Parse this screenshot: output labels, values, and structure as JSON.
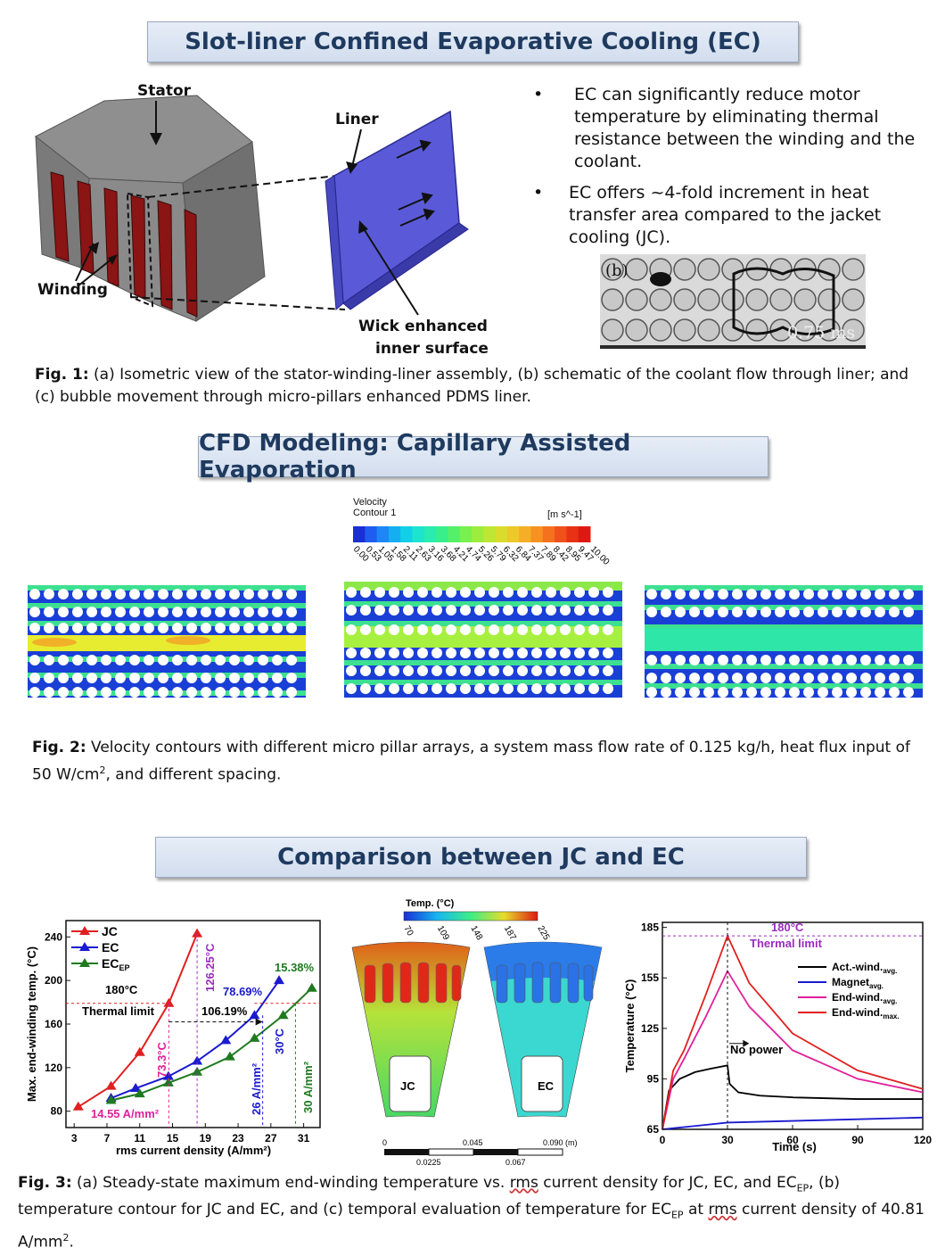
{
  "section1": {
    "title": "Slot-liner Confined Evaporative Cooling (EC)",
    "labels": {
      "stator": "Stator",
      "liner": "Liner",
      "winding": "Winding",
      "wick1": "Wick enhanced",
      "wick2": "inner surface"
    },
    "bullets": [
      "EC can significantly reduce motor temperature by eliminating thermal resistance between the winding and the coolant.",
      "EC offers ~4-fold increment in heat transfer area compared to the jacket cooling (JC)."
    ],
    "photo": {
      "label": "(b)",
      "time": "0.75 ms"
    },
    "caption_lead": "Fig. 1:",
    "caption": " (a) Isometric view of the stator-winding-liner assembly, (b) schematic of the coolant flow through liner; and (c) bubble movement through micro-pillars enhanced PDMS liner."
  },
  "section2": {
    "title": "CFD Modeling: Capillary Assisted Evaporation",
    "legend": {
      "title1": "Velocity",
      "title2": "Contour 1",
      "unit": "[m s^-1]",
      "ticks": [
        "0.00",
        "0.53",
        "1.05",
        "1.58",
        "2.11",
        "2.63",
        "3.16",
        "3.68",
        "4.21",
        "4.74",
        "5.26",
        "5.79",
        "6.32",
        "6.84",
        "7.37",
        "7.89",
        "8.42",
        "8.95",
        "9.47",
        "10.00"
      ],
      "colors": [
        "#1a2fd6",
        "#1f5cf0",
        "#1f86f5",
        "#15aef2",
        "#12cfe8",
        "#1de4cf",
        "#28ecb0",
        "#39ef8b",
        "#55f06a",
        "#78f04f",
        "#9ced3d",
        "#bde733",
        "#d9dc2c",
        "#ecc829",
        "#f5ae26",
        "#f79122",
        "#f5711e",
        "#f0501a",
        "#e83216",
        "#dd1a12"
      ]
    },
    "caption_lead": "Fig. 2:",
    "caption_a": " Velocity contours with different micro pillar arrays, a system mass flow rate of 0.125 kg/h, heat flux input of 50 W/cm",
    "caption_sup": "2",
    "caption_b": ", and different spacing."
  },
  "section3": {
    "title": "Comparison between JC and EC",
    "chart_a": {
      "ylabel": "Max. end-winding temp. (°C)",
      "xlabel": "rms current density (A/mm²)",
      "xticks": [
        "3",
        "7",
        "11",
        "15",
        "19",
        "23",
        "27",
        "31"
      ],
      "yticks": [
        "80",
        "120",
        "160",
        "200",
        "240"
      ],
      "legend": [
        "JC",
        "EC",
        "EC"
      ],
      "legend_sub": "EP",
      "annotations": {
        "limit_temp": "180°C",
        "limit_label": "Thermal limit",
        "jc_x": "14.55 A/mm²",
        "jc_y": "73.3°C",
        "jc_max": "126.25°C",
        "ec_pct": "78.69%",
        "ecep_pct": "106.19%",
        "ecep_top": "15.38%",
        "ec_x": "26 A/mm²",
        "ec_dt": "30°C",
        "ecep_x": "30 A/mm²"
      }
    },
    "contour_b": {
      "legend_title": "Temp. (°C)",
      "ticks": [
        "70",
        "109",
        "148",
        "187",
        "225"
      ],
      "label_left": "JC",
      "label_right": "EC",
      "scale_top": [
        "0",
        "0.045",
        "0.090 (m)"
      ],
      "scale_bottom": [
        "0.0225",
        "0.067"
      ]
    },
    "chart_c": {
      "ylabel": "Temperature (°C)",
      "xlabel": "Time (s)",
      "xticks": [
        "0",
        "30",
        "60",
        "90",
        "120"
      ],
      "yticks": [
        "65",
        "95",
        "125",
        "155",
        "185"
      ],
      "limit_temp": "180°C",
      "limit_label": "Thermal limit",
      "no_power": "No power",
      "legend": [
        {
          "name": "Act.-wind.",
          "sub": "avg.",
          "color": "#000000"
        },
        {
          "name": "Magnet",
          "sub": "avg.",
          "color": "#1a1ad0"
        },
        {
          "name": "End-wind.",
          "sub": "avg.",
          "color": "#e0209a"
        },
        {
          "name": "End-wind.",
          "sub": "max.",
          "color": "#e02020"
        }
      ]
    },
    "caption_lead": "Fig. 3:",
    "caption_1": " (a) Steady-state maximum end-winding temperature vs. ",
    "caption_rms": "rms",
    "caption_2": " current density for JC, EC, and EC",
    "caption_sub": "EP",
    "caption_3": ", (b) temperature contour for JC and EC, and (c) temporal evaluation of temperature for EC",
    "caption_sub2": "EP",
    "caption_4": " at ",
    "caption_rms2": "rms",
    "caption_5": " current density of 40.81 A/mm",
    "caption_sup": "2",
    "caption_6": "."
  },
  "chart_data": [
    {
      "type": "line",
      "title": "",
      "xlabel": "rms current density (A/mm²)",
      "ylabel": "Max. end-winding temp. (°C)",
      "xlim": [
        2,
        33
      ],
      "ylim": [
        65,
        255
      ],
      "series": [
        {
          "name": "JC",
          "color": "#e02020",
          "marker": "triangle",
          "x": [
            3.5,
            7.5,
            11,
            14.55,
            18
          ],
          "y": [
            84,
            103,
            134,
            179,
            243
          ]
        },
        {
          "name": "EC",
          "color": "#1a1ad0",
          "marker": "triangle",
          "x": [
            7.5,
            10.5,
            14.5,
            18,
            21.5,
            25,
            28
          ],
          "y": [
            92,
            101,
            112,
            126,
            145,
            168,
            200
          ]
        },
        {
          "name": "EC_EP",
          "color": "#1f7a1f",
          "marker": "triangle",
          "x": [
            7.5,
            11,
            14.5,
            18,
            22,
            25,
            28.5,
            32
          ],
          "y": [
            90,
            96,
            106,
            116,
            130,
            147,
            168,
            193
          ]
        }
      ]
    },
    {
      "type": "line",
      "title": "",
      "xlabel": "Time (s)",
      "ylabel": "Temperature (°C)",
      "xlim": [
        0,
        120
      ],
      "ylim": [
        65,
        188
      ],
      "series": [
        {
          "name": "Act.-wind.avg.",
          "color": "#000000",
          "x": [
            0,
            3,
            8,
            15,
            22,
            30,
            31,
            35,
            45,
            60,
            90,
            120
          ],
          "y": [
            65,
            88,
            95,
            99,
            101,
            103,
            92,
            87,
            85,
            84,
            83,
            83
          ]
        },
        {
          "name": "Magnet avg.",
          "color": "#1a1ad0",
          "x": [
            0,
            15,
            30,
            60,
            90,
            120
          ],
          "y": [
            65,
            67,
            69,
            70,
            71,
            72
          ]
        },
        {
          "name": "End-wind.avg.",
          "color": "#e0209a",
          "x": [
            0,
            5,
            10,
            20,
            30,
            40,
            60,
            90,
            120
          ],
          "y": [
            65,
            95,
            107,
            132,
            159,
            138,
            112,
            95,
            87
          ]
        },
        {
          "name": "End-wind.max.",
          "color": "#e02020",
          "x": [
            0,
            5,
            10,
            20,
            30,
            40,
            60,
            90,
            120
          ],
          "y": [
            65,
            100,
            112,
            145,
            180,
            152,
            122,
            100,
            89
          ]
        }
      ]
    }
  ]
}
